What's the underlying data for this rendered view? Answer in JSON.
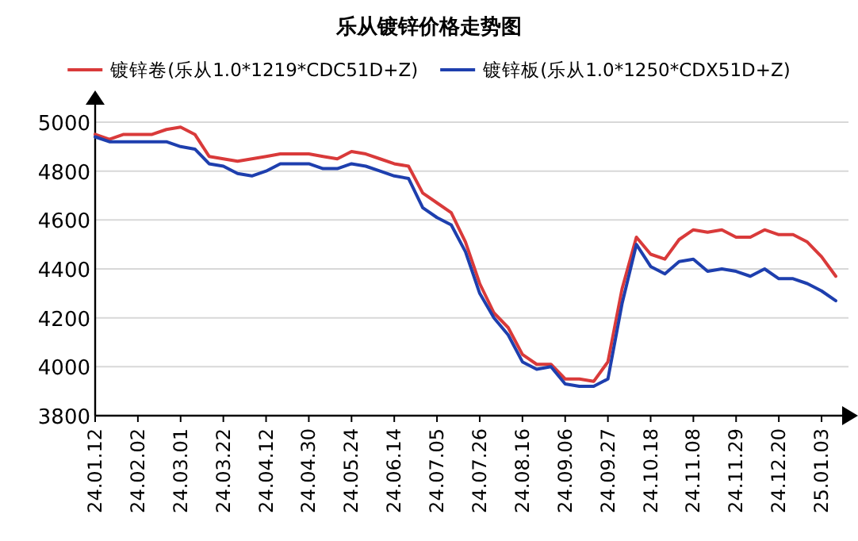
{
  "chart_data": {
    "type": "line",
    "title": "乐从镀锌价格走势图",
    "categories": [
      "24.01.12",
      null,
      null,
      "24.02.02",
      null,
      null,
      "24.03.01",
      null,
      null,
      "24.03.22",
      null,
      null,
      "24.04.12",
      null,
      null,
      "24.04.30",
      null,
      null,
      "24.05.24",
      null,
      null,
      "24.06.14",
      null,
      null,
      "24.07.05",
      null,
      null,
      "24.07.26",
      null,
      null,
      "24.08.16",
      null,
      null,
      "24.09.06",
      null,
      null,
      "24.09.27",
      null,
      null,
      "24.10.18",
      null,
      null,
      "24.11.08",
      null,
      null,
      "24.11.29",
      null,
      null,
      "24.12.20",
      null,
      null,
      "25.01.03",
      null
    ],
    "series": [
      {
        "name": "镀锌卷(乐从1.0*1219*CDC51D+Z)",
        "color": "#d93a3a",
        "values": [
          4950,
          4930,
          4950,
          4950,
          4950,
          4970,
          4980,
          4950,
          4860,
          4850,
          4840,
          4850,
          4860,
          4870,
          4870,
          4870,
          4860,
          4850,
          4880,
          4870,
          4850,
          4830,
          4820,
          4710,
          4670,
          4630,
          4510,
          4340,
          4220,
          4160,
          4050,
          4010,
          4010,
          3950,
          3950,
          3940,
          4020,
          4320,
          4530,
          4460,
          4440,
          4520,
          4560,
          4550,
          4560,
          4530,
          4530,
          4560,
          4540,
          4540,
          4510,
          4450,
          4370
        ]
      },
      {
        "name": "镀锌板(乐从1.0*1250*CDX51D+Z)",
        "color": "#1e3fae",
        "values": [
          4940,
          4920,
          4920,
          4920,
          4920,
          4920,
          4900,
          4890,
          4830,
          4820,
          4790,
          4780,
          4800,
          4830,
          4830,
          4830,
          4810,
          4810,
          4830,
          4820,
          4800,
          4780,
          4770,
          4650,
          4610,
          4580,
          4470,
          4300,
          4200,
          4130,
          4020,
          3990,
          4000,
          3930,
          3920,
          3920,
          3950,
          4260,
          4500,
          4410,
          4380,
          4430,
          4440,
          4390,
          4400,
          4390,
          4370,
          4400,
          4360,
          4360,
          4340,
          4310,
          4270
        ]
      }
    ],
    "ylim": [
      3800,
      5000
    ],
    "yticks": [
      3800,
      4000,
      4200,
      4400,
      4600,
      4800,
      5000
    ],
    "grid": "y",
    "legend": "top"
  }
}
